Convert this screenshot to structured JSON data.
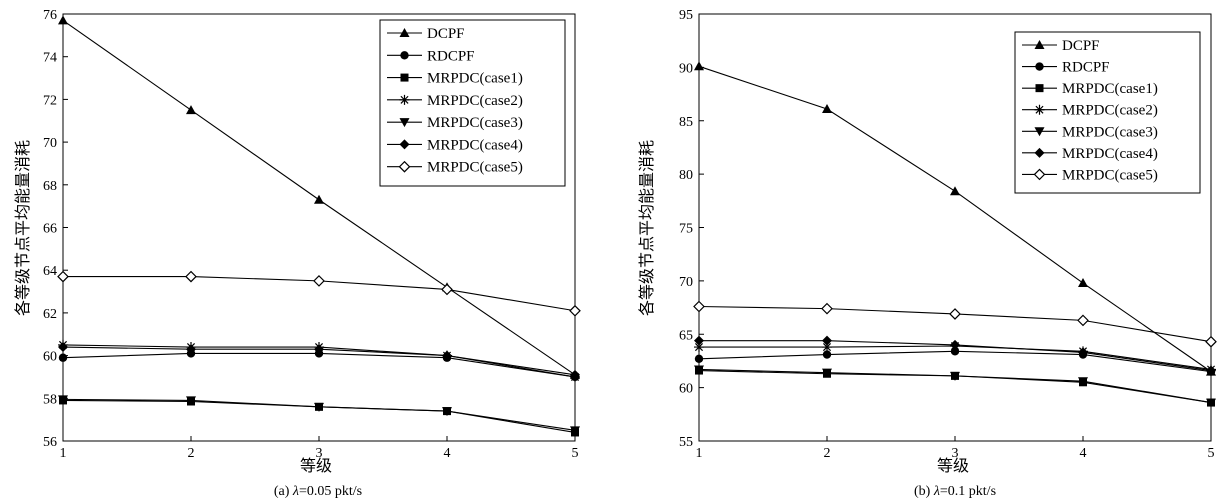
{
  "chart_data": [
    {
      "type": "line",
      "caption_prefix": "(a)",
      "caption_lambda": "λ",
      "caption_rest": "=0.05 pkt/s",
      "xlabel": "等级",
      "ylabel": "各等级节点平均能量消耗",
      "x": [
        1,
        2,
        3,
        4,
        5
      ],
      "xlim": [
        1,
        5
      ],
      "ylim": [
        56,
        76
      ],
      "yticks": [
        56,
        58,
        60,
        62,
        64,
        66,
        68,
        70,
        72,
        74,
        76
      ],
      "legend_position": "top-right",
      "series": [
        {
          "name": "DCPF",
          "marker": "triangle-up",
          "values": [
            75.7,
            71.5,
            67.3,
            63.2,
            59.1
          ]
        },
        {
          "name": "RDCPF",
          "marker": "circle",
          "values": [
            59.9,
            60.1,
            60.1,
            59.9,
            59.0
          ]
        },
        {
          "name": "MRPDC(case1)",
          "marker": "square",
          "values": [
            57.9,
            57.85,
            57.6,
            57.4,
            56.4
          ]
        },
        {
          "name": "MRPDC(case2)",
          "marker": "star",
          "values": [
            60.5,
            60.4,
            60.4,
            60.0,
            59.0
          ]
        },
        {
          "name": "MRPDC(case3)",
          "marker": "triangle-down",
          "values": [
            57.95,
            57.9,
            57.6,
            57.4,
            56.5
          ]
        },
        {
          "name": "MRPDC(case4)",
          "marker": "diamond",
          "values": [
            60.4,
            60.3,
            60.3,
            60.0,
            59.1
          ]
        },
        {
          "name": "MRPDC(case5)",
          "marker": "diamond-open",
          "values": [
            63.7,
            63.7,
            63.5,
            63.1,
            62.1
          ]
        }
      ]
    },
    {
      "type": "line",
      "caption_prefix": "(b)",
      "caption_lambda": "λ",
      "caption_rest": "=0.1 pkt/s",
      "xlabel": "等级",
      "ylabel": "各等级节点平均能量消耗",
      "x": [
        1,
        2,
        3,
        4,
        5
      ],
      "xlim": [
        1,
        5
      ],
      "ylim": [
        55,
        95
      ],
      "yticks": [
        55,
        60,
        65,
        70,
        75,
        80,
        85,
        90,
        95
      ],
      "legend_position": "top-right",
      "series": [
        {
          "name": "DCPF",
          "marker": "triangle-up",
          "values": [
            90.1,
            86.1,
            78.4,
            69.8,
            61.5
          ]
        },
        {
          "name": "RDCPF",
          "marker": "circle",
          "values": [
            62.7,
            63.1,
            63.4,
            63.1,
            61.5
          ]
        },
        {
          "name": "MRPDC(case1)",
          "marker": "square",
          "values": [
            61.6,
            61.3,
            61.1,
            60.5,
            58.6
          ]
        },
        {
          "name": "MRPDC(case2)",
          "marker": "star",
          "values": [
            63.8,
            63.8,
            63.9,
            63.4,
            61.7
          ]
        },
        {
          "name": "MRPDC(case3)",
          "marker": "triangle-down",
          "values": [
            61.7,
            61.4,
            61.1,
            60.6,
            58.6
          ]
        },
        {
          "name": "MRPDC(case4)",
          "marker": "diamond",
          "values": [
            64.4,
            64.4,
            64.0,
            63.3,
            61.6
          ]
        },
        {
          "name": "MRPDC(case5)",
          "marker": "diamond-open",
          "values": [
            67.6,
            67.4,
            66.9,
            66.3,
            64.3
          ]
        }
      ]
    }
  ]
}
